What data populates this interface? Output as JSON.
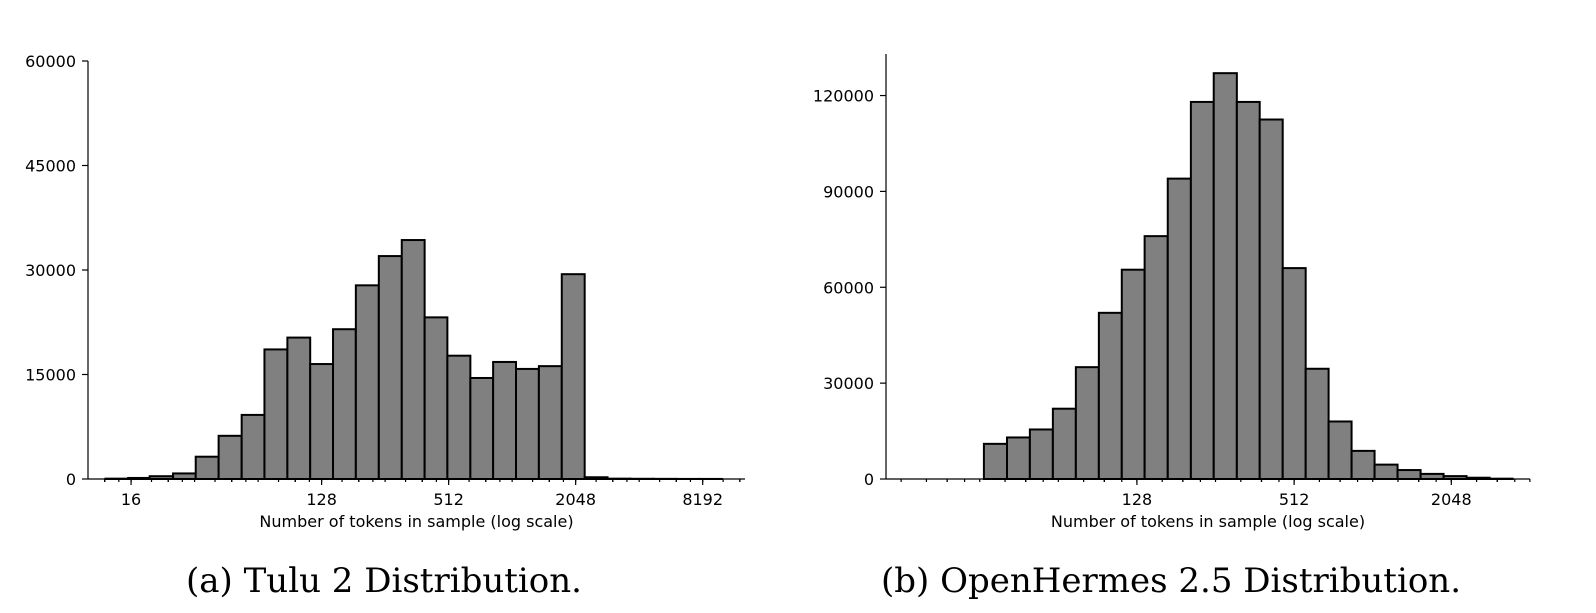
{
  "chart_data": [
    {
      "type": "bar",
      "subtype": "histogram",
      "caption": "(a) Tulu 2 Distribution.",
      "xlabel": "Number of tokens in sample (log scale)",
      "ylabel": "",
      "xscale": "log2",
      "xlim": [
        10,
        13000
      ],
      "ylim": [
        0,
        60000
      ],
      "xticks": [
        16,
        128,
        512,
        2048,
        8192
      ],
      "xtick_labels": [
        "16",
        "128",
        "512",
        "2048",
        "8192"
      ],
      "yticks": [
        0,
        15000,
        30000,
        45000,
        60000
      ],
      "ytick_labels": [
        "0",
        "15000",
        "30000",
        "45000",
        "60000"
      ],
      "grid": false,
      "bar_color": "#808080",
      "bins": [
        {
          "x0": 12.1,
          "x1": 15.5,
          "value": 50
        },
        {
          "x0": 15.5,
          "x1": 19.6,
          "value": 150
        },
        {
          "x0": 19.6,
          "x1": 25.3,
          "value": 400
        },
        {
          "x0": 25.3,
          "x1": 32.4,
          "value": 800
        },
        {
          "x0": 32.4,
          "x1": 41.6,
          "value": 3200
        },
        {
          "x0": 41.6,
          "x1": 53.5,
          "value": 6200
        },
        {
          "x0": 53.5,
          "x1": 68.6,
          "value": 9200
        },
        {
          "x0": 68.6,
          "x1": 88.1,
          "value": 18600
        },
        {
          "x0": 88.1,
          "x1": 113,
          "value": 20300
        },
        {
          "x0": 113,
          "x1": 145,
          "value": 16500
        },
        {
          "x0": 145,
          "x1": 186,
          "value": 21500
        },
        {
          "x0": 186,
          "x1": 239,
          "value": 27800
        },
        {
          "x0": 239,
          "x1": 307,
          "value": 32000
        },
        {
          "x0": 307,
          "x1": 394,
          "value": 34300
        },
        {
          "x0": 394,
          "x1": 505,
          "value": 23200
        },
        {
          "x0": 505,
          "x1": 649,
          "value": 17700
        },
        {
          "x0": 649,
          "x1": 832,
          "value": 14500
        },
        {
          "x0": 832,
          "x1": 1068,
          "value": 16800
        },
        {
          "x0": 1068,
          "x1": 1371,
          "value": 15800
        },
        {
          "x0": 1371,
          "x1": 1760,
          "value": 16200
        },
        {
          "x0": 1760,
          "x1": 2260,
          "value": 29400
        },
        {
          "x0": 2260,
          "x1": 2900,
          "value": 250
        },
        {
          "x0": 2900,
          "x1": 3720,
          "value": 50
        },
        {
          "x0": 3720,
          "x1": 4780,
          "value": 30
        },
        {
          "x0": 4780,
          "x1": 6130,
          "value": 20
        },
        {
          "x0": 6130,
          "x1": 7870,
          "value": 10
        },
        {
          "x0": 7870,
          "x1": 10100,
          "value": 10
        }
      ]
    },
    {
      "type": "bar",
      "subtype": "histogram",
      "caption": "(b) OpenHermes 2.5 Distribution.",
      "xlabel": "Number of tokens in sample (log scale)",
      "ylabel": "",
      "xscale": "log2",
      "xlim": [
        14,
        4100
      ],
      "ylim": [
        0,
        133000
      ],
      "xticks": [
        128,
        512,
        2048
      ],
      "xtick_labels": [
        "128",
        "512",
        "2048"
      ],
      "yticks": [
        0,
        30000,
        60000,
        90000,
        120000
      ],
      "ytick_labels": [
        "0",
        "30000",
        "60000",
        "90000",
        "120000"
      ],
      "grid": false,
      "bar_color": "#808080",
      "bins": [
        {
          "x0": 14,
          "x1": 22.2,
          "value": 0
        },
        {
          "x0": 22.2,
          "x1": 33.2,
          "value": 0
        },
        {
          "x0": 33.2,
          "x1": 40.7,
          "value": 11000
        },
        {
          "x0": 40.7,
          "x1": 49.8,
          "value": 13000
        },
        {
          "x0": 49.8,
          "x1": 61.0,
          "value": 15500
        },
        {
          "x0": 61.0,
          "x1": 74.7,
          "value": 22000
        },
        {
          "x0": 74.7,
          "x1": 91.5,
          "value": 35000
        },
        {
          "x0": 91.5,
          "x1": 112,
          "value": 52000
        },
        {
          "x0": 112,
          "x1": 137,
          "value": 65500
        },
        {
          "x0": 137,
          "x1": 168,
          "value": 76000
        },
        {
          "x0": 168,
          "x1": 206,
          "value": 94000
        },
        {
          "x0": 206,
          "x1": 252,
          "value": 118000
        },
        {
          "x0": 252,
          "x1": 309,
          "value": 127000
        },
        {
          "x0": 309,
          "x1": 378,
          "value": 118000
        },
        {
          "x0": 378,
          "x1": 463,
          "value": 112500
        },
        {
          "x0": 463,
          "x1": 567,
          "value": 66000
        },
        {
          "x0": 567,
          "x1": 694,
          "value": 34500
        },
        {
          "x0": 694,
          "x1": 850,
          "value": 18000
        },
        {
          "x0": 850,
          "x1": 1041,
          "value": 8800
        },
        {
          "x0": 1041,
          "x1": 1275,
          "value": 4500
        },
        {
          "x0": 1275,
          "x1": 1562,
          "value": 2800
        },
        {
          "x0": 1562,
          "x1": 1913,
          "value": 1600
        },
        {
          "x0": 1913,
          "x1": 2343,
          "value": 900
        },
        {
          "x0": 2343,
          "x1": 2870,
          "value": 400
        },
        {
          "x0": 2870,
          "x1": 3516,
          "value": 100
        }
      ]
    }
  ]
}
